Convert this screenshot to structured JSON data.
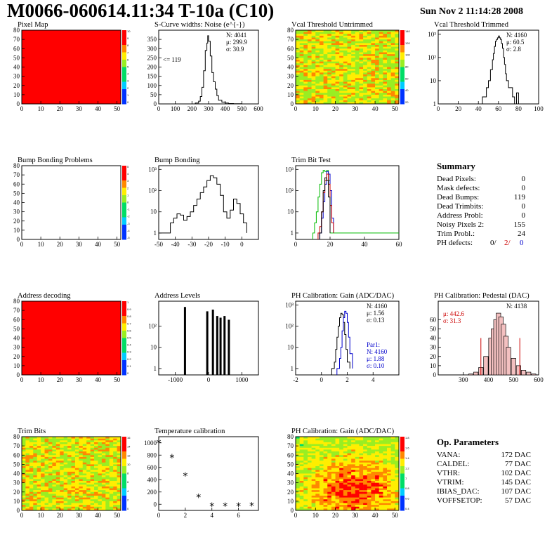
{
  "header": {
    "title": "M0066-060614.11:34 T-10a (C10)",
    "date": "Sun Nov  2 11:14:28 2008"
  },
  "colors": {
    "red": "#ff0000",
    "green_map": "#66dd22",
    "blue": "#0000cc",
    "green_line": "#00bb00",
    "hist_red": "#cc0000"
  },
  "chart_data": [
    {
      "id": "pixel_map",
      "type": "heatmap",
      "title": "Pixel Map",
      "xlim": [
        0,
        52
      ],
      "ylim": [
        0,
        80
      ],
      "x_ticks": [
        "0",
        "10",
        "20",
        "30",
        "40",
        "50"
      ],
      "y_ticks": [
        "0",
        "10",
        "20",
        "30",
        "40",
        "50",
        "60",
        "70",
        "80"
      ],
      "fill": "uniform-red",
      "zlim": [
        0,
        10
      ],
      "colorbar_ticks": [
        "10",
        "9",
        "8",
        "7",
        "6",
        "5",
        "4",
        "3",
        "2",
        "1",
        "0"
      ]
    },
    {
      "id": "scurve",
      "type": "line",
      "title": "S-Curve widths: Noise (e^{-})",
      "xlim": [
        0,
        600
      ],
      "ylim": [
        0,
        400
      ],
      "x_ticks": [
        "0",
        "100",
        "200",
        "300",
        "400",
        "500",
        "600"
      ],
      "y_ticks": [
        "0",
        "50",
        "100",
        "150",
        "200",
        "250",
        "300",
        "350"
      ],
      "stats": [
        "N: 4041",
        "μ: 299.9",
        "σ: 30.9"
      ],
      "annotation": "<= 119",
      "x": [
        200,
        220,
        240,
        250,
        260,
        270,
        280,
        290,
        295,
        300,
        310,
        320,
        330,
        340,
        350,
        360,
        380,
        400,
        420,
        450,
        500
      ],
      "y": [
        0,
        5,
        15,
        40,
        90,
        180,
        290,
        330,
        370,
        340,
        260,
        170,
        120,
        80,
        45,
        20,
        10,
        5,
        2,
        1,
        0
      ]
    },
    {
      "id": "vcal_untrimmed",
      "type": "heatmap",
      "title": "Vcal Threshold Untrimmed",
      "xlim": [
        0,
        52
      ],
      "ylim": [
        0,
        80
      ],
      "x_ticks": [
        "0",
        "10",
        "20",
        "30",
        "40",
        "50"
      ],
      "y_ticks": [
        "0",
        "10",
        "20",
        "30",
        "40",
        "50",
        "60",
        "70",
        "80"
      ],
      "fill": "noisy-green",
      "zlim": [
        0,
        140
      ],
      "colorbar_ticks": [
        "140",
        "120",
        "100",
        "80",
        "60",
        "40",
        "20"
      ]
    },
    {
      "id": "vcal_trimmed",
      "type": "line",
      "title": "Vcal Threshold Trimmed",
      "xlim": [
        0,
        100
      ],
      "ylim": [
        1,
        1500
      ],
      "log_y": true,
      "x_ticks": [
        "0",
        "20",
        "40",
        "60",
        "80",
        "100"
      ],
      "y_ticks": [
        "1",
        "10",
        "10²",
        "10³"
      ],
      "stats": [
        "N: 4160",
        "μ: 60.5",
        "σ: 2.8"
      ],
      "x": [
        40,
        44,
        48,
        50,
        52,
        54,
        55,
        56,
        57,
        58,
        59,
        60,
        61,
        62,
        63,
        64,
        65,
        66,
        67,
        68,
        70,
        74,
        76,
        78,
        80
      ],
      "y": [
        1,
        2,
        5,
        10,
        30,
        80,
        150,
        300,
        500,
        600,
        700,
        850,
        700,
        600,
        400,
        250,
        100,
        50,
        20,
        10,
        5,
        2,
        1,
        3,
        1
      ]
    },
    {
      "id": "bump_problems",
      "type": "heatmap",
      "title": "Bump Bonding Problems",
      "xlim": [
        0,
        52
      ],
      "ylim": [
        0,
        80
      ],
      "x_ticks": [
        "0",
        "10",
        "20",
        "30",
        "40",
        "50"
      ],
      "y_ticks": [
        "0",
        "10",
        "20",
        "30",
        "40",
        "50",
        "60",
        "70",
        "80"
      ],
      "fill": "empty",
      "zlim": [
        -5,
        5
      ],
      "colorbar_ticks": [
        "5",
        "4",
        "3",
        "2",
        "1",
        "0",
        "-1",
        "-2",
        "-3",
        "-4",
        "-5"
      ]
    },
    {
      "id": "bump_bonding",
      "type": "line",
      "title": "Bump Bonding",
      "xlim": [
        -50,
        10
      ],
      "ylim": [
        0.5,
        1500
      ],
      "log_y": true,
      "x_ticks": [
        "-50",
        "-40",
        "-30",
        "-20",
        "-10",
        "0"
      ],
      "y_ticks": [
        "1",
        "10",
        "10²",
        "10³"
      ],
      "x": [
        -50,
        -47,
        -45,
        -43,
        -41,
        -39,
        -37,
        -35,
        -33,
        -31,
        -29,
        -27,
        -25,
        -23,
        -21,
        -19,
        -17,
        -15,
        -13,
        -11,
        -9,
        -7,
        -5,
        -3,
        -1,
        1,
        3
      ],
      "y": [
        1,
        1,
        1,
        3,
        5,
        8,
        7,
        4,
        6,
        10,
        20,
        40,
        80,
        150,
        300,
        500,
        400,
        200,
        60,
        10,
        5,
        12,
        40,
        25,
        8,
        3,
        1
      ]
    },
    {
      "id": "trim_bit_test",
      "type": "line",
      "title": "Trim Bit Test",
      "xlim": [
        0,
        60
      ],
      "ylim": [
        0.5,
        1500
      ],
      "log_y": true,
      "x_ticks": [
        "0",
        "20",
        "40",
        "60"
      ],
      "y_ticks": [
        "1",
        "10",
        "10²",
        "10³"
      ],
      "series": [
        {
          "color": "#00bb00",
          "x": [
            10,
            11,
            12,
            13,
            14,
            15,
            16,
            17,
            18,
            19,
            20,
            60
          ],
          "y": [
            1,
            3,
            10,
            50,
            200,
            700,
            900,
            800,
            900,
            300,
            1,
            1
          ]
        },
        {
          "color": "#0000cc",
          "x": [
            14,
            15,
            16,
            17,
            18,
            19,
            20,
            21,
            22
          ],
          "y": [
            1,
            5,
            30,
            200,
            800,
            600,
            100,
            5,
            1
          ]
        },
        {
          "color": "#cc0000",
          "x": [
            13,
            14,
            15,
            16,
            17,
            18,
            19,
            20,
            21,
            22
          ],
          "y": [
            1,
            2,
            10,
            80,
            300,
            600,
            200,
            20,
            3,
            1
          ]
        },
        {
          "color": "#000000",
          "x": [
            14,
            15,
            16,
            17,
            18,
            19,
            20
          ],
          "y": [
            1,
            10,
            100,
            400,
            300,
            50,
            1
          ]
        }
      ]
    },
    {
      "id": "address_decoding",
      "type": "heatmap",
      "title": "Address decoding",
      "xlim": [
        0,
        52
      ],
      "ylim": [
        0,
        80
      ],
      "x_ticks": [
        "0",
        "10",
        "20",
        "30",
        "40",
        "50"
      ],
      "y_ticks": [
        "0",
        "10",
        "20",
        "30",
        "40",
        "50",
        "60",
        "70",
        "80"
      ],
      "fill": "uniform-red",
      "zlim": [
        0,
        1
      ],
      "colorbar_ticks": [
        "1",
        "0.9",
        "0.8",
        "0.7",
        "0.6",
        "0.5",
        "0.4",
        "0.3",
        "0.2",
        "0.1",
        "0"
      ]
    },
    {
      "id": "address_levels",
      "type": "bar",
      "title": "Address Levels",
      "xlim": [
        -1500,
        1500
      ],
      "ylim": [
        0.5,
        1500
      ],
      "log_y": true,
      "x_ticks": [
        "-1000",
        "0",
        "1000"
      ],
      "y_ticks": [
        "1",
        "10",
        "10²"
      ],
      "x": [
        -720,
        -50,
        120,
        250,
        350,
        470,
        600
      ],
      "y": [
        800,
        500,
        600,
        300,
        250,
        300,
        200
      ]
    },
    {
      "id": "ph_gain",
      "type": "line",
      "title": "PH Calibration: Gain (ADC/DAC)",
      "xlim": [
        -2,
        6
      ],
      "ylim": [
        0.5,
        1500
      ],
      "log_y": true,
      "x_ticks": [
        "-2",
        "0",
        "2",
        "4"
      ],
      "y_ticks": [
        "1",
        "10",
        "10²",
        "10³"
      ],
      "stats": [
        "N: 4160",
        "μ: 1.56",
        "σ: 0.13"
      ],
      "stats2_title": "Par1:",
      "stats2": [
        "N: 4160",
        "μ: 1.88",
        "σ: 0.10"
      ],
      "series": [
        {
          "color": "#000000",
          "x": [
            0.8,
            1.0,
            1.1,
            1.2,
            1.3,
            1.4,
            1.5,
            1.6,
            1.7,
            1.8,
            1.9,
            2.0,
            2.2
          ],
          "y": [
            1,
            2,
            8,
            30,
            100,
            250,
            400,
            350,
            150,
            40,
            8,
            2,
            1
          ]
        },
        {
          "color": "#0000cc",
          "x": [
            1.2,
            1.4,
            1.5,
            1.6,
            1.7,
            1.8,
            1.9,
            2.0,
            2.1,
            2.2,
            2.4
          ],
          "y": [
            1,
            3,
            10,
            60,
            250,
            500,
            400,
            150,
            30,
            5,
            1
          ]
        }
      ]
    },
    {
      "id": "ph_pedestal",
      "type": "bar",
      "title": "PH Calibration: Pedestal (DAC)",
      "xlim": [
        200,
        600
      ],
      "ylim": [
        0,
        80
      ],
      "x_ticks": [
        "300",
        "400",
        "500",
        "600"
      ],
      "y_ticks": [
        "0",
        "10",
        "20",
        "30",
        "40",
        "50",
        "60"
      ],
      "stats": [
        "N: 4138"
      ],
      "stats_red": [
        "μ: 442.6",
        "σ: 31.3"
      ],
      "fit_range": [
        370,
        525
      ],
      "x": [
        330,
        350,
        370,
        390,
        410,
        420,
        430,
        440,
        450,
        460,
        470,
        480,
        500,
        520,
        540,
        560,
        580
      ],
      "y": [
        1,
        3,
        8,
        20,
        40,
        50,
        60,
        67,
        63,
        55,
        42,
        30,
        18,
        10,
        5,
        3,
        1
      ]
    },
    {
      "id": "trim_bits",
      "type": "heatmap",
      "title": "Trim Bits",
      "xlim": [
        0,
        52
      ],
      "ylim": [
        0,
        80
      ],
      "x_ticks": [
        "0",
        "10",
        "20",
        "30",
        "40",
        "50"
      ],
      "y_ticks": [
        "0",
        "10",
        "20",
        "30",
        "40",
        "50",
        "60",
        "70",
        "80"
      ],
      "fill": "noisy-green",
      "zlim": [
        0,
        16
      ],
      "colorbar_ticks": [
        "16",
        "14",
        "12",
        "10",
        "8",
        "6",
        "4",
        "2",
        "0"
      ]
    },
    {
      "id": "temp_calibration",
      "type": "scatter",
      "title": "Temperature calibration",
      "xlim": [
        0,
        7.5
      ],
      "ylim": [
        -100,
        1100
      ],
      "x_ticks": [
        "0",
        "2",
        "4",
        "6"
      ],
      "y_ticks": [
        "0",
        "200",
        "400",
        "600",
        "800",
        "1000"
      ],
      "x": [
        0,
        1,
        2,
        3,
        4,
        5,
        6,
        7
      ],
      "y": [
        1000,
        760,
        460,
        110,
        -30,
        -30,
        -30,
        -25
      ]
    },
    {
      "id": "ph_gain_map",
      "type": "heatmap",
      "title": "PH Calibration: Gain (ADC/DAC)",
      "xlim": [
        0,
        52
      ],
      "ylim": [
        0,
        80
      ],
      "x_ticks": [
        "0",
        "10",
        "20",
        "30",
        "40",
        "50"
      ],
      "y_ticks": [
        "0",
        "10",
        "20",
        "30",
        "40",
        "50",
        "60",
        "70",
        "80"
      ],
      "fill": "warm-gradient",
      "zlim": [
        0,
        2
      ],
      "colorbar_ticks": [
        "1.8",
        "1.6",
        "1.4",
        "1.2",
        "1",
        "0.8",
        "0.6",
        "0.4"
      ]
    }
  ],
  "summary": {
    "title": "Summary",
    "rows": [
      {
        "label": "Dead Pixels:",
        "value": "0"
      },
      {
        "label": "Mask defects:",
        "value": "0"
      },
      {
        "label": "Dead Bumps:",
        "value": "119"
      },
      {
        "label": "Dead Trimbits:",
        "value": "0"
      },
      {
        "label": "Address Probl:",
        "value": "0"
      },
      {
        "label": "Noisy Pixels 2:",
        "value": "155"
      },
      {
        "label": "Trim Probl.:",
        "value": "24"
      }
    ],
    "ph_label": "PH defects:",
    "ph_values": [
      "0/",
      "2/",
      "0"
    ]
  },
  "op_params": {
    "title": "Op. Parameters",
    "rows": [
      {
        "label": "VANA:",
        "value": "172 DAC"
      },
      {
        "label": "CALDEL:",
        "value": "77 DAC"
      },
      {
        "label": "VTHR:",
        "value": "102 DAC"
      },
      {
        "label": "VTRIM:",
        "value": "145 DAC"
      },
      {
        "label": "IBIAS_DAC:",
        "value": "107 DAC"
      },
      {
        "label": "VOFFSETOP:",
        "value": "57 DAC"
      }
    ]
  }
}
